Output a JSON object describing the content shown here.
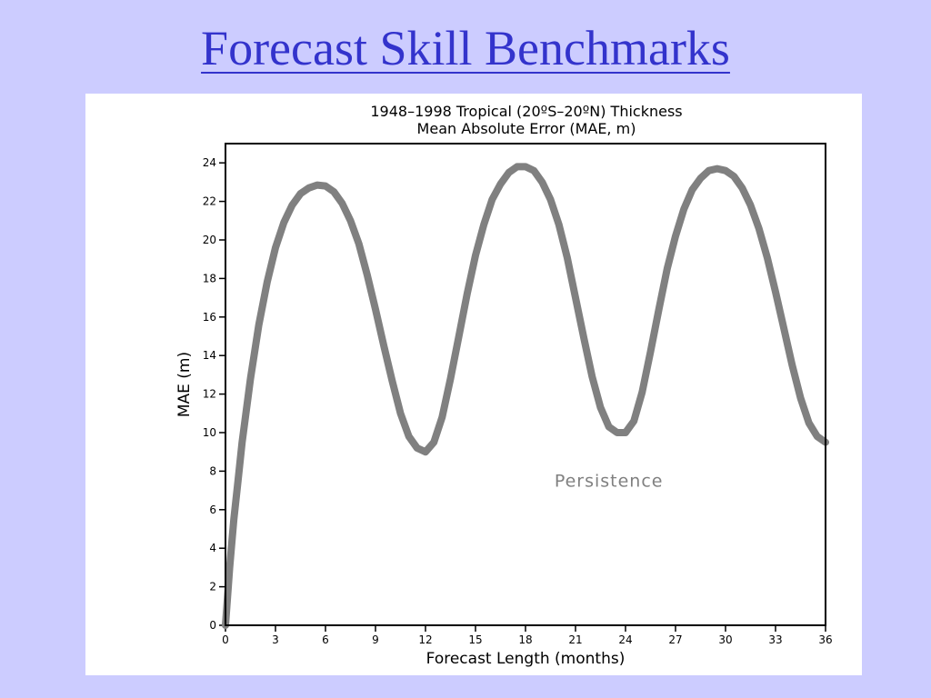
{
  "slide": {
    "title": "Forecast Skill Benchmarks"
  },
  "chart_data": {
    "type": "line",
    "title": "1948–1998 Tropical (20ºS–20ºN) Thickness",
    "subtitle": "Mean Absolute Error (MAE, m)",
    "xlabel": "Forecast Length (months)",
    "ylabel": "MAE (m)",
    "xlim": [
      0,
      36
    ],
    "ylim": [
      0,
      25
    ],
    "xticks": [
      0,
      3,
      6,
      9,
      12,
      15,
      18,
      21,
      24,
      27,
      30,
      33,
      36
    ],
    "yticks": [
      0,
      2,
      4,
      6,
      8,
      10,
      12,
      14,
      16,
      18,
      20,
      22,
      24
    ],
    "grid": false,
    "annotations": [
      {
        "text": "Persistence",
        "x": 23,
        "y": 7.2,
        "color": "#808080"
      }
    ],
    "series": [
      {
        "color": "#808080",
        "x": [
          0,
          0.25,
          0.5,
          0.75,
          1,
          1.5,
          2,
          2.5,
          3,
          3.5,
          4,
          4.5,
          5,
          5.5,
          6,
          6.5,
          7,
          7.5,
          8,
          8.5,
          9,
          9.5,
          10,
          10.5,
          11,
          11.5,
          12,
          12.5,
          13,
          13.5,
          14,
          14.5,
          15,
          15.5,
          16,
          16.5,
          17,
          17.5,
          18,
          18.5,
          19,
          19.5,
          20,
          20.5,
          21,
          21.5,
          22,
          22.5,
          23,
          23.5,
          24,
          24.5,
          25,
          25.5,
          26,
          26.5,
          27,
          27.5,
          28,
          28.5,
          29,
          29.5,
          30,
          30.5,
          31,
          31.5,
          32,
          32.5,
          33,
          33.5,
          34,
          34.5,
          35,
          35.5,
          36
        ],
        "values": [
          0,
          3.0,
          5.5,
          7.5,
          9.5,
          12.8,
          15.6,
          17.8,
          19.6,
          20.9,
          21.8,
          22.4,
          22.7,
          22.85,
          22.8,
          22.5,
          21.9,
          21.0,
          19.8,
          18.2,
          16.4,
          14.5,
          12.7,
          11.0,
          9.8,
          9.2,
          9.0,
          9.5,
          10.8,
          12.8,
          15.0,
          17.2,
          19.2,
          20.8,
          22.1,
          22.9,
          23.5,
          23.8,
          23.8,
          23.6,
          23.0,
          22.1,
          20.8,
          19.1,
          17.0,
          14.9,
          12.9,
          11.3,
          10.3,
          10.0,
          10.0,
          10.6,
          12.1,
          14.2,
          16.4,
          18.5,
          20.2,
          21.6,
          22.6,
          23.2,
          23.6,
          23.7,
          23.6,
          23.3,
          22.7,
          21.8,
          20.6,
          19.1,
          17.3,
          15.4,
          13.5,
          11.8,
          10.5,
          9.8,
          9.5
        ]
      }
    ]
  }
}
